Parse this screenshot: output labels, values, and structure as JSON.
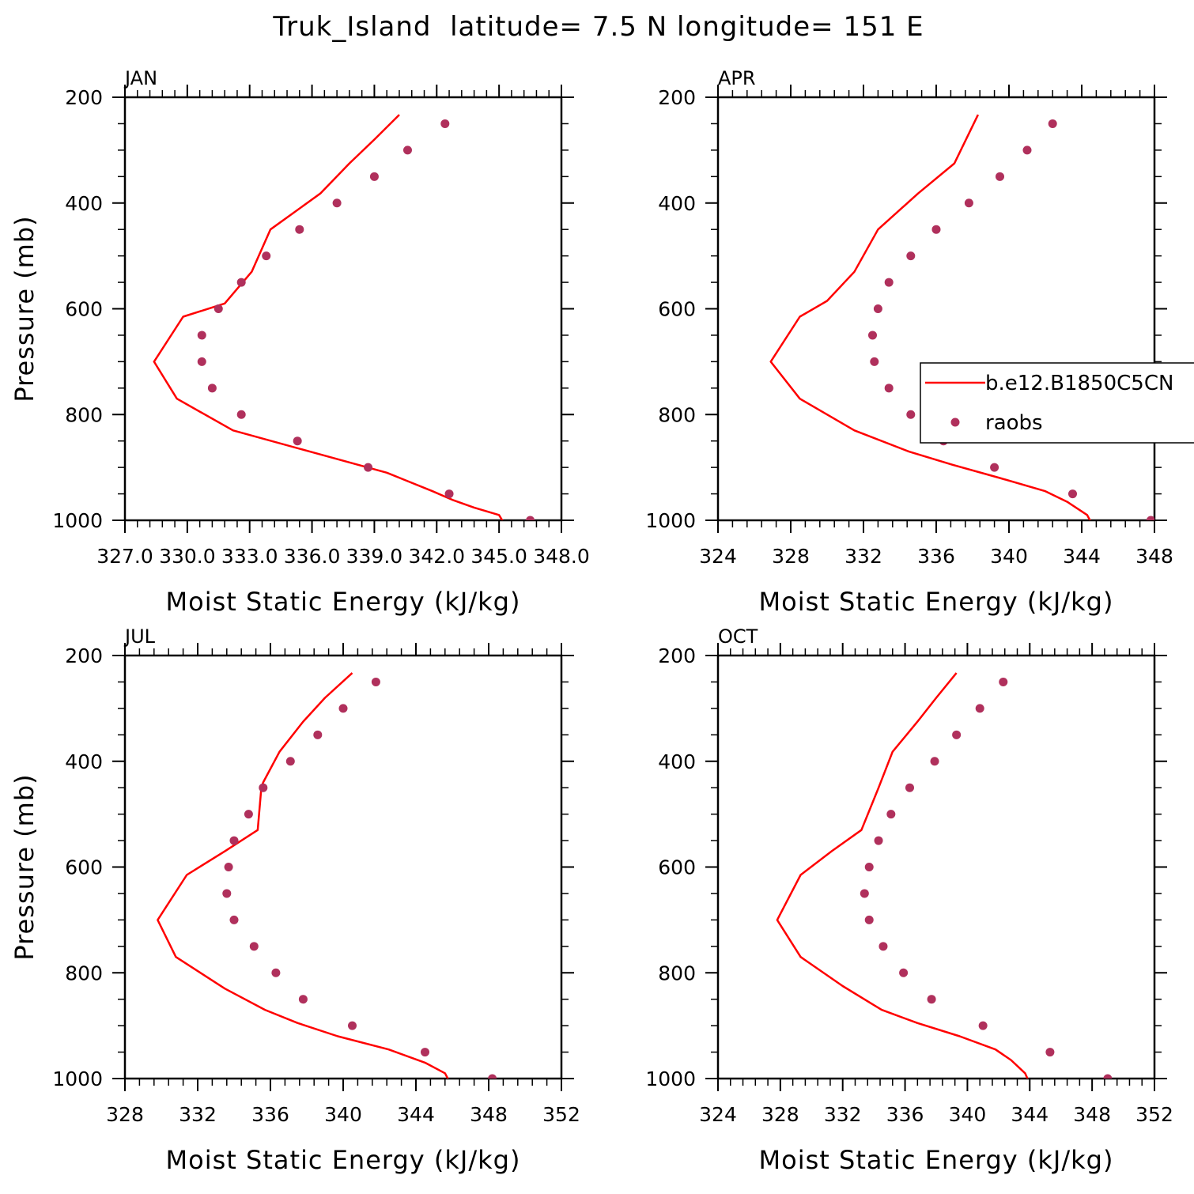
{
  "figure": {
    "title": "Truk_Island  latitude= 7.5 N longitude= 151 E"
  },
  "colors": {
    "model_line": "#ff0000",
    "obs_marker": "#b0305c",
    "axis": "#000000"
  },
  "chart_data": [
    {
      "type": "line",
      "panel_label": "JAN",
      "xlabel": "Moist Static Energy (kJ/kg)",
      "ylabel": "Pressure (mb)",
      "xlim": [
        327.0,
        348.0
      ],
      "ylim": [
        1000,
        200
      ],
      "x_ticks": [
        327.0,
        330.0,
        333.0,
        336.0,
        339.0,
        342.0,
        345.0,
        348.0
      ],
      "x_tick_labels": [
        "327.0",
        "330.0",
        "333.0",
        "336.0",
        "339.0",
        "342.0",
        "345.0",
        "348.0"
      ],
      "y_ticks": [
        200,
        400,
        600,
        800,
        1000
      ],
      "y_tick_labels": [
        "200",
        "400",
        "600",
        "800",
        "1000"
      ],
      "series": [
        {
          "name": "b.e12.B1850C5CN",
          "kind": "line",
          "x": [
            340.2,
            339.0,
            337.8,
            336.4,
            334.0,
            333.1,
            331.8,
            329.8,
            328.4,
            329.5,
            332.2,
            335.9,
            339.6,
            341.8,
            342.8,
            343.8,
            345.0,
            345.2
          ],
          "y": [
            233,
            280,
            325,
            382,
            450,
            530,
            590,
            615,
            700,
            770,
            830,
            870,
            910,
            945,
            962,
            976,
            990,
            1003
          ]
        },
        {
          "name": "raobs",
          "kind": "scatter",
          "x": [
            342.4,
            340.6,
            339.0,
            337.2,
            335.4,
            333.8,
            332.6,
            331.5,
            330.7,
            330.7,
            331.2,
            332.6,
            335.3,
            338.7,
            342.6,
            346.5
          ],
          "y": [
            250,
            300,
            350,
            400,
            450,
            500,
            550,
            600,
            650,
            700,
            750,
            800,
            850,
            900,
            950,
            1000
          ]
        }
      ],
      "legend": null
    },
    {
      "type": "line",
      "panel_label": "APR",
      "xlabel": "Moist Static Energy (kJ/kg)",
      "ylabel": "",
      "xlim": [
        324,
        348
      ],
      "ylim": [
        1000,
        200
      ],
      "x_ticks": [
        324,
        328,
        332,
        336,
        340,
        344,
        348
      ],
      "x_tick_labels": [
        "324",
        "328",
        "332",
        "336",
        "340",
        "344",
        "348"
      ],
      "y_ticks": [
        200,
        400,
        600,
        800,
        1000
      ],
      "y_tick_labels": [
        "200",
        "400",
        "600",
        "800",
        "1000"
      ],
      "series": [
        {
          "name": "b.e12.B1850C5CN",
          "kind": "line",
          "x": [
            338.3,
            337.0,
            335.0,
            332.8,
            331.5,
            330.0,
            328.5,
            326.9,
            328.5,
            331.5,
            334.5,
            336.9,
            339.5,
            342.0,
            343.2,
            344.3,
            344.5
          ],
          "y": [
            233,
            325,
            382,
            450,
            530,
            585,
            615,
            700,
            770,
            830,
            870,
            895,
            920,
            945,
            965,
            990,
            1003
          ]
        },
        {
          "name": "raobs",
          "kind": "scatter",
          "x": [
            342.4,
            341.0,
            339.5,
            337.8,
            336.0,
            334.6,
            333.4,
            332.8,
            332.5,
            332.6,
            333.4,
            334.6,
            336.4,
            339.2,
            343.5,
            347.8
          ],
          "y": [
            250,
            300,
            350,
            400,
            450,
            500,
            550,
            600,
            650,
            700,
            750,
            800,
            850,
            900,
            950,
            1000
          ]
        }
      ],
      "legend": {
        "placement": "right",
        "entries": [
          {
            "label": "b.e12.B1850C5CN",
            "kind": "line"
          },
          {
            "label": "raobs",
            "kind": "marker"
          }
        ]
      }
    },
    {
      "type": "line",
      "panel_label": "JUL",
      "xlabel": "Moist Static Energy (kJ/kg)",
      "ylabel": "Pressure (mb)",
      "xlim": [
        328,
        352
      ],
      "ylim": [
        1000,
        200
      ],
      "x_ticks": [
        328,
        332,
        336,
        340,
        344,
        348,
        352
      ],
      "x_tick_labels": [
        "328",
        "332",
        "336",
        "340",
        "344",
        "348",
        "352"
      ],
      "y_ticks": [
        200,
        400,
        600,
        800,
        1000
      ],
      "y_tick_labels": [
        "200",
        "400",
        "600",
        "800",
        "1000"
      ],
      "series": [
        {
          "name": "b.e12.B1850C5CN",
          "kind": "line",
          "x": [
            340.5,
            339.0,
            337.8,
            336.5,
            335.6,
            335.5,
            335.3,
            333.5,
            331.4,
            329.8,
            330.8,
            333.5,
            335.7,
            337.5,
            339.7,
            342.5,
            344.5,
            345.6,
            345.8
          ],
          "y": [
            233,
            280,
            325,
            382,
            440,
            450,
            530,
            570,
            615,
            700,
            770,
            830,
            870,
            895,
            920,
            945,
            970,
            990,
            1003
          ]
        },
        {
          "name": "raobs",
          "kind": "scatter",
          "x": [
            341.8,
            340.0,
            338.6,
            337.1,
            335.6,
            334.8,
            334.0,
            333.7,
            333.6,
            334.0,
            335.1,
            336.3,
            337.8,
            340.5,
            344.5,
            348.2
          ],
          "y": [
            250,
            300,
            350,
            400,
            450,
            500,
            550,
            600,
            650,
            700,
            750,
            800,
            850,
            900,
            950,
            1000
          ]
        }
      ],
      "legend": null
    },
    {
      "type": "line",
      "panel_label": "OCT",
      "xlabel": "Moist Static Energy (kJ/kg)",
      "ylabel": "",
      "xlim": [
        324,
        352
      ],
      "ylim": [
        1000,
        200
      ],
      "x_ticks": [
        324,
        328,
        332,
        336,
        340,
        344,
        348,
        352
      ],
      "x_tick_labels": [
        "324",
        "328",
        "332",
        "336",
        "340",
        "344",
        "348",
        "352"
      ],
      "y_ticks": [
        200,
        400,
        600,
        800,
        1000
      ],
      "y_tick_labels": [
        "200",
        "400",
        "600",
        "800",
        "1000"
      ],
      "series": [
        {
          "name": "b.e12.B1850C5CN",
          "kind": "line",
          "x": [
            339.3,
            338.0,
            336.8,
            335.2,
            334.3,
            333.2,
            331.3,
            329.3,
            327.8,
            329.3,
            332.0,
            334.5,
            336.8,
            339.5,
            341.8,
            342.8,
            343.7,
            343.9
          ],
          "y": [
            233,
            280,
            325,
            382,
            450,
            530,
            570,
            615,
            700,
            770,
            825,
            870,
            895,
            920,
            945,
            965,
            990,
            1003
          ]
        },
        {
          "name": "raobs",
          "kind": "scatter",
          "x": [
            342.3,
            340.8,
            339.3,
            337.9,
            336.3,
            335.1,
            334.3,
            333.7,
            333.4,
            333.7,
            334.6,
            335.9,
            337.7,
            341.0,
            345.3,
            349.0
          ],
          "y": [
            250,
            300,
            350,
            400,
            450,
            500,
            550,
            600,
            650,
            700,
            750,
            800,
            850,
            900,
            950,
            1000
          ]
        }
      ],
      "legend": null
    }
  ]
}
